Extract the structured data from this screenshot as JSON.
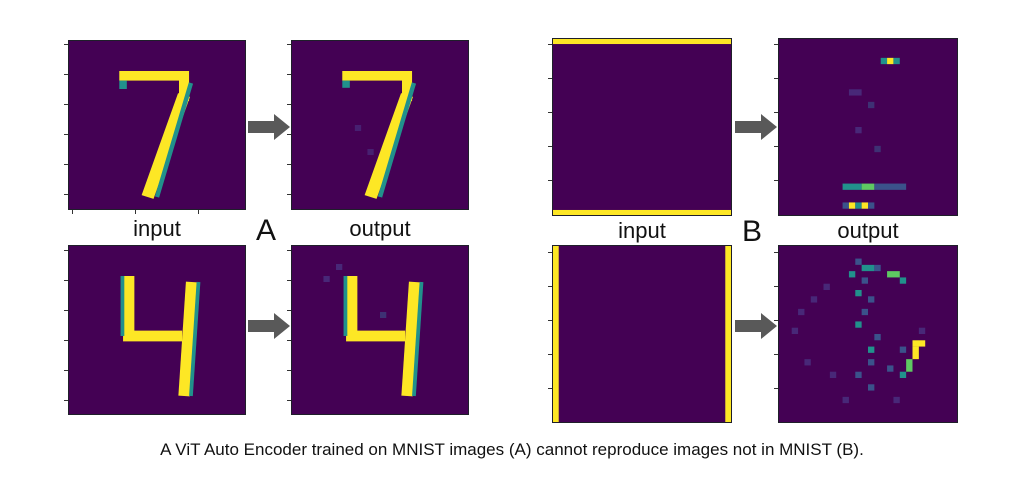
{
  "figure": {
    "group_a": {
      "letter": "A",
      "input_label": "input",
      "output_label": "output",
      "rows": [
        {
          "digit": "7"
        },
        {
          "digit": "4"
        }
      ]
    },
    "group_b": {
      "letter": "B",
      "input_label": "input",
      "output_label": "output",
      "rows": [
        {
          "pattern": "horizontal-bars"
        },
        {
          "pattern": "vertical-bars"
        }
      ]
    },
    "caption": "A ViT Auto Encoder trained on MNIST images (A) cannot reproduce images not in MNIST (B)."
  },
  "colors": {
    "background": "#440154",
    "bright": "#fde725",
    "mid": "#21918c",
    "dim": "#3b528b",
    "arrow": "#595959"
  },
  "icons": [
    "right-arrow-icon"
  ]
}
